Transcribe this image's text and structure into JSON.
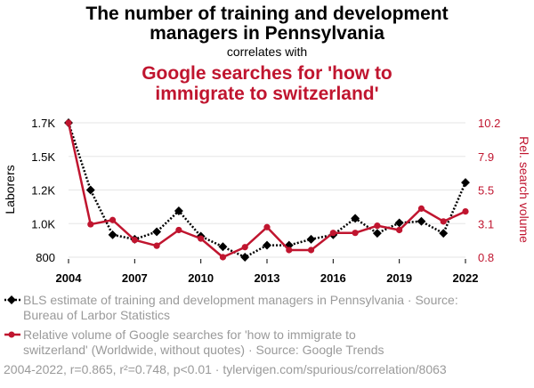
{
  "header": {
    "title_line1": "The number of training and development",
    "title_line2": "managers in Pennsylvania",
    "correlates": "correlates with",
    "title2_line1": "Google searches for 'how to",
    "title2_line2": "immigrate to switzerland'"
  },
  "chart_data": {
    "type": "line",
    "x": [
      2004,
      2005,
      2006,
      2007,
      2008,
      2009,
      2010,
      2011,
      2012,
      2013,
      2014,
      2015,
      2016,
      2017,
      2018,
      2019,
      2020,
      2021,
      2022
    ],
    "xticks": [
      "2004",
      "2007",
      "2010",
      "2013",
      "2016",
      "2019",
      "2022"
    ],
    "xlim": [
      2004,
      2022
    ],
    "series": [
      {
        "name": "BLS estimate of training and development managers in Pennsylvania",
        "axis": "left",
        "color": "#000000",
        "values": [
          1700,
          1250,
          950,
          920,
          970,
          1110,
          940,
          870,
          800,
          880,
          880,
          920,
          950,
          1060,
          960,
          1030,
          1040,
          960,
          1300
        ]
      },
      {
        "name": "Relative volume of Google searches for 'how to immigrate to switzerland'",
        "axis": "right",
        "color": "#c0152f",
        "values": [
          10.2,
          3.1,
          3.4,
          2.0,
          1.6,
          2.7,
          2.1,
          0.8,
          1.5,
          2.9,
          1.3,
          1.3,
          2.5,
          2.5,
          3.0,
          2.7,
          4.2,
          3.3,
          4.0
        ]
      }
    ],
    "y_left": {
      "label": "Laborers",
      "ticks": [
        "800",
        "1.0K",
        "1.2K",
        "1.5K",
        "1.7K"
      ],
      "ylim": [
        800,
        1700
      ]
    },
    "y_right": {
      "label": "Rel. search volume",
      "ticks": [
        "0.8",
        "3.1",
        "5.5",
        "7.9",
        "10.2"
      ],
      "ylim": [
        0.8,
        10.2
      ]
    },
    "grid": true,
    "legend": "bottom",
    "legend_entries": [
      "BLS estimate of training and development managers in Pennsylvania · Source: Bureau of Larbor Statistics",
      "Relative volume of Google searches for 'how to immigrate to switzerland' (Worldwide, without quotes) · Source: Google Trends"
    ]
  },
  "legend": {
    "item1_line1": "BLS estimate of training and development managers in Pennsylvania · Source:",
    "item1_line2": "Bureau of Larbor Statistics",
    "item2_line1": "Relative volume of Google searches for 'how to immigrate to",
    "item2_line2": "switzerland' (Worldwide, without quotes) · Source: Google Trends"
  },
  "footer": "2004-2022, r=0.865, r²=0.748, p<0.01 · tylervigen.com/spurious/correlation/8063"
}
